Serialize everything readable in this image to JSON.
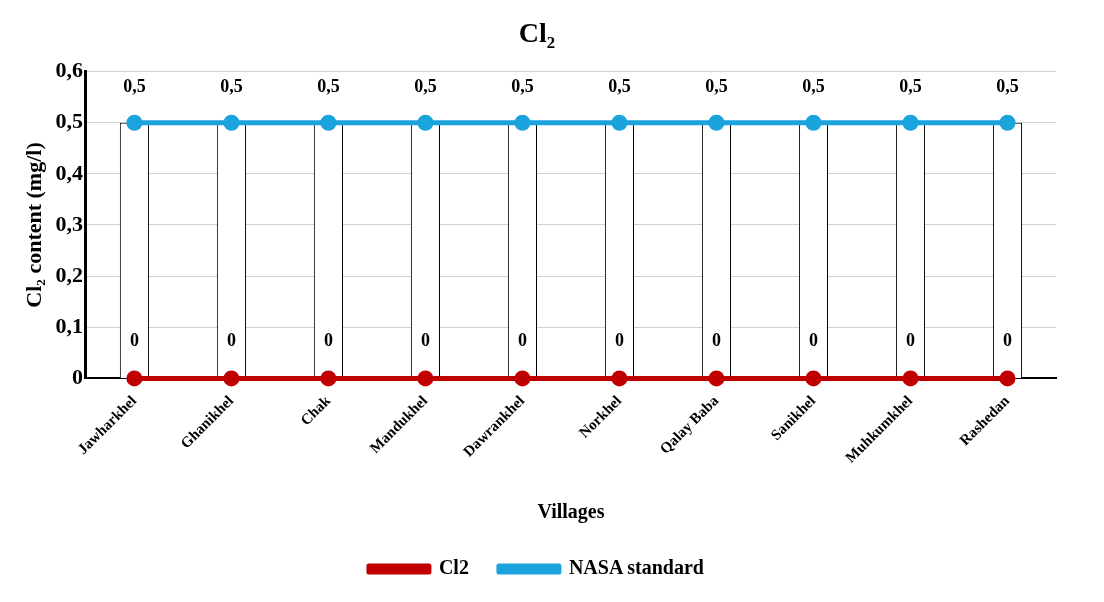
{
  "chart_data": {
    "type": "line",
    "title": "Cl₂",
    "xlabel": "Villages",
    "ylabel": "Cl₂ content (mg/l)",
    "categories": [
      "Jawharkhel",
      "Ghanikhel",
      "Chak",
      "Mandukhel",
      "Dawrankhel",
      "Norkhel",
      "Qalay Baba",
      "Sanikhel",
      "Muhkumkhel",
      "Rashedan"
    ],
    "series": [
      {
        "type": "bar",
        "color": "#ffffff",
        "values": [
          0.5,
          0.5,
          0.5,
          0.5,
          0.5,
          0.5,
          0.5,
          0.5,
          0.5,
          0.5
        ]
      },
      {
        "name": "Cl2",
        "color": "#c00000",
        "values": [
          0,
          0,
          0,
          0,
          0,
          0,
          0,
          0,
          0,
          0
        ],
        "value_labels": [
          "0",
          "0",
          "0",
          "0",
          "0",
          "0",
          "0",
          "0",
          "0",
          "0"
        ]
      },
      {
        "name": "NASA standard",
        "color": "#1aa3dc",
        "values": [
          0.5,
          0.5,
          0.5,
          0.5,
          0.5,
          0.5,
          0.5,
          0.5,
          0.5,
          0.5
        ],
        "value_labels": [
          "0,5",
          "0,5",
          "0,5",
          "0,5",
          "0,5",
          "0,5",
          "0,5",
          "0,5",
          "0,5",
          "0,5"
        ]
      }
    ],
    "ylim": [
      0,
      0.6
    ],
    "yticks": [
      0,
      {
        "value": 0.1,
        "label": "0,1"
      },
      {
        "value": 0.2,
        "label": "0,2"
      },
      {
        "value": 0.3,
        "label": "0,3"
      },
      {
        "value": 0.4,
        "label": "0,4"
      },
      {
        "value": 0.5,
        "label": "0,5"
      },
      {
        "value": 0.6,
        "label": "0,6"
      }
    ],
    "grid": "y",
    "legend": "bottom",
    "marker": "circle",
    "line_style": "solid"
  }
}
